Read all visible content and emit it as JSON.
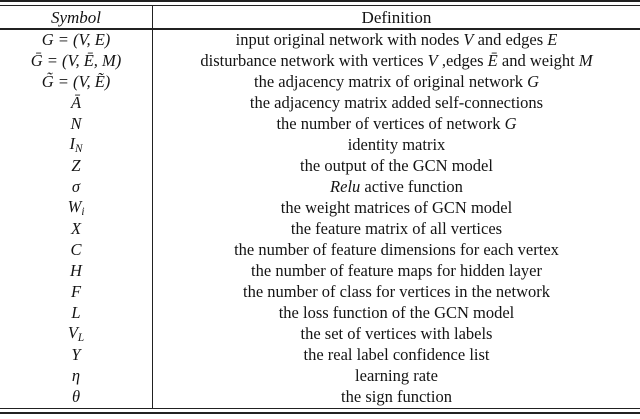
{
  "colors": {
    "background": "#ffffff",
    "text": "#141414",
    "rule": "#212121"
  },
  "table": {
    "header": {
      "symbol": "Symbol",
      "definition": "Definition"
    },
    "rows": [
      {
        "symbol": {
          "main": "G = (V, E)",
          "sub": ""
        },
        "definition": [
          {
            "t": "input original network with nodes ",
            "i": false
          },
          {
            "t": "V",
            "i": true
          },
          {
            "t": " and edges ",
            "i": false
          },
          {
            "t": "E",
            "i": true
          }
        ]
      },
      {
        "symbol": {
          "main": "Ḡ = (V, Ē, M)",
          "sub": ""
        },
        "definition": [
          {
            "t": "disturbance network with vertices ",
            "i": false
          },
          {
            "t": "V",
            "i": true
          },
          {
            "t": " ,edges ",
            "i": false
          },
          {
            "t": "Ē",
            "i": true
          },
          {
            "t": " and weight ",
            "i": false
          },
          {
            "t": "M",
            "i": true
          }
        ]
      },
      {
        "symbol": {
          "main": "G̃ = (V, Ẽ)",
          "sub": ""
        },
        "definition": [
          {
            "t": "the adjacency matrix of original network ",
            "i": false
          },
          {
            "t": "G",
            "i": true
          }
        ]
      },
      {
        "symbol": {
          "main": "Ā",
          "sub": ""
        },
        "definition": [
          {
            "t": "the adjacency matrix added self-connections",
            "i": false
          }
        ]
      },
      {
        "symbol": {
          "main": "N",
          "sub": ""
        },
        "definition": [
          {
            "t": "the number of vertices of network ",
            "i": false
          },
          {
            "t": "G",
            "i": true
          }
        ]
      },
      {
        "symbol": {
          "main": "I",
          "sub": "N"
        },
        "definition": [
          {
            "t": "identity matrix",
            "i": false
          }
        ]
      },
      {
        "symbol": {
          "main": "Z",
          "sub": ""
        },
        "definition": [
          {
            "t": "the output of the GCN model",
            "i": false
          }
        ]
      },
      {
        "symbol": {
          "main": "σ",
          "sub": ""
        },
        "definition": [
          {
            "t": "Relu",
            "i": true
          },
          {
            "t": " active function",
            "i": false
          }
        ]
      },
      {
        "symbol": {
          "main": "W",
          "sub": "i"
        },
        "definition": [
          {
            "t": "the weight matrices of GCN model",
            "i": false
          }
        ]
      },
      {
        "symbol": {
          "main": "X",
          "sub": ""
        },
        "definition": [
          {
            "t": "the feature matrix of all vertices",
            "i": false
          }
        ]
      },
      {
        "symbol": {
          "main": "C",
          "sub": ""
        },
        "definition": [
          {
            "t": "the number of feature dimensions for each vertex",
            "i": false
          }
        ]
      },
      {
        "symbol": {
          "main": "H",
          "sub": ""
        },
        "definition": [
          {
            "t": "the number of feature maps for hidden layer",
            "i": false
          }
        ]
      },
      {
        "symbol": {
          "main": "F",
          "sub": ""
        },
        "definition": [
          {
            "t": "the number of class for vertices in the network",
            "i": false
          }
        ]
      },
      {
        "symbol": {
          "main": "L",
          "sub": ""
        },
        "definition": [
          {
            "t": "the loss function of the GCN model",
            "i": false
          }
        ]
      },
      {
        "symbol": {
          "main": "V",
          "sub": "L"
        },
        "definition": [
          {
            "t": "the set of vertices with labels",
            "i": false
          }
        ]
      },
      {
        "symbol": {
          "main": "Y",
          "sub": ""
        },
        "definition": [
          {
            "t": "the real label confidence list",
            "i": false
          }
        ]
      },
      {
        "symbol": {
          "main": "η",
          "sub": ""
        },
        "definition": [
          {
            "t": "learning rate",
            "i": false
          }
        ]
      },
      {
        "symbol": {
          "main": "θ",
          "sub": ""
        },
        "definition": [
          {
            "t": "the sign function",
            "i": false
          }
        ]
      }
    ]
  }
}
